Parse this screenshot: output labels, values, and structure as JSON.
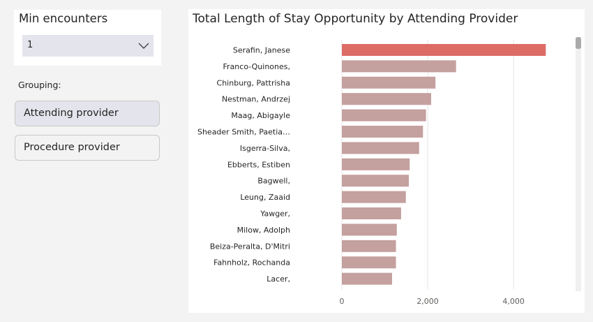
{
  "filter": {
    "title": "Min encounters",
    "selected_value": "1"
  },
  "grouping": {
    "label": "Grouping:",
    "attending_label": "Attending provider",
    "procedure_label": "Procedure provider"
  },
  "chart_data": {
    "type": "bar",
    "orientation": "horizontal",
    "title": "Total Length of Stay Opportunity by Attending Provider",
    "categories": [
      "Serafin, Janese",
      "Franco-Quinones,",
      "Chinburg, Pattrisha",
      "Nestman, Andrzej",
      "Maag, Abigayle",
      "Sheader Smith, Paetia…",
      "Isgerra-Silva,",
      "Ebberts, Estiben",
      "Bagwell,",
      "Leung, Zaaid",
      "Yawger,",
      "Milow, Adolph",
      "Beiza-Peralta, D'Mitri",
      "Fahnholz, Rochanda",
      "Lacer,"
    ],
    "values": [
      4750,
      2660,
      2180,
      2080,
      1960,
      1890,
      1800,
      1580,
      1560,
      1490,
      1380,
      1280,
      1260,
      1260,
      1170
    ],
    "xlim": [
      0,
      5200
    ],
    "x_ticks": [
      0,
      2000,
      4000
    ],
    "x_tick_labels": [
      "0",
      "2,000",
      "4,000"
    ],
    "xlabel": "",
    "ylabel": "",
    "grid": "vertical",
    "colors": {
      "max": "#dd6b66",
      "base": "#c4a09e",
      "gridline": "#e6e6e6",
      "tick_text": "#605e5c"
    }
  }
}
